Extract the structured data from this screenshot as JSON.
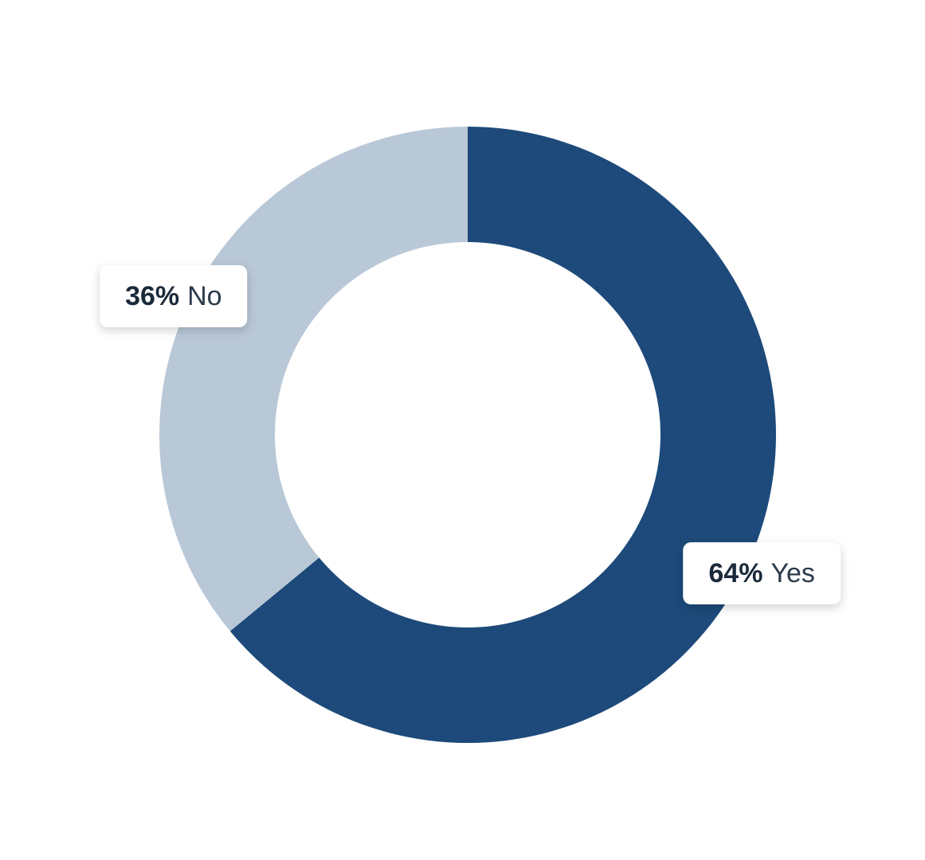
{
  "chart_data": {
    "type": "donut",
    "categories": [
      "Yes",
      "No"
    ],
    "values": [
      64,
      36
    ],
    "value_labels": [
      "64%",
      "36%"
    ],
    "colors": [
      "#1d4a7a",
      "#b9c8d7"
    ]
  }
}
